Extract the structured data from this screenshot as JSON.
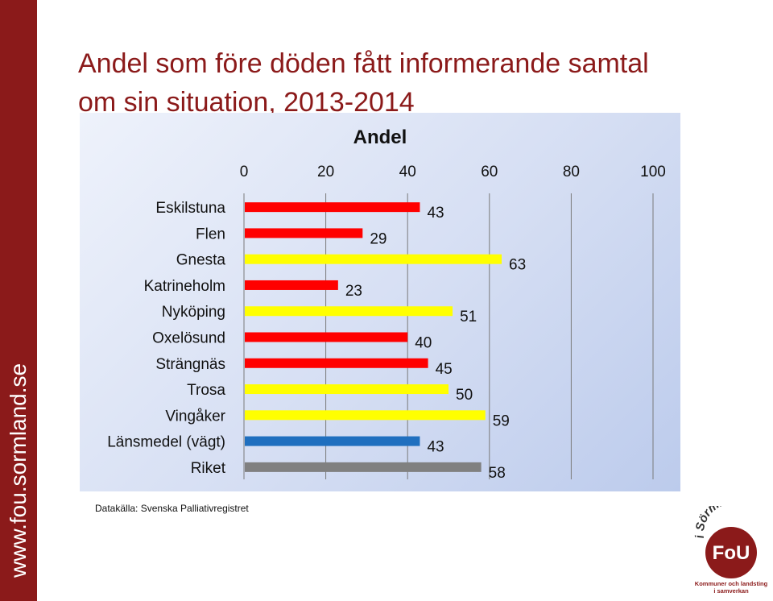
{
  "sidebar": {
    "text": "www.fou.sormland.se"
  },
  "slide": {
    "title": "Andel som före döden fått informerande samtal om sin situation, 2013-2014"
  },
  "source": "Datakälla: Svenska Palliativregistret",
  "logo": {
    "top_text": "i Sörmland",
    "center_text": "FoU",
    "bottom_line1": "Kommuner och landsting",
    "bottom_line2": "i samverkan",
    "color": "#8b1a1a"
  },
  "chart_data": {
    "type": "bar",
    "orientation": "horizontal",
    "title": "Andel",
    "xlim": [
      0,
      100
    ],
    "xticks": [
      0,
      20,
      40,
      60,
      80,
      100
    ],
    "grid": true,
    "axis_position": "top",
    "categories": [
      "Eskilstuna",
      "Flen",
      "Gnesta",
      "Katrineholm",
      "Nyköping",
      "Oxelösund",
      "Strängnäs",
      "Trosa",
      "Vingåker",
      "Länsmedel (vägt)",
      "Riket"
    ],
    "values": [
      43,
      29,
      63,
      23,
      51,
      40,
      45,
      50,
      59,
      43,
      58
    ],
    "colors": [
      "#ff0000",
      "#ff0000",
      "#ffff00",
      "#ff0000",
      "#ffff00",
      "#ff0000",
      "#ff0000",
      "#ffff00",
      "#ffff00",
      "#1f6fbf",
      "#808080"
    ]
  }
}
